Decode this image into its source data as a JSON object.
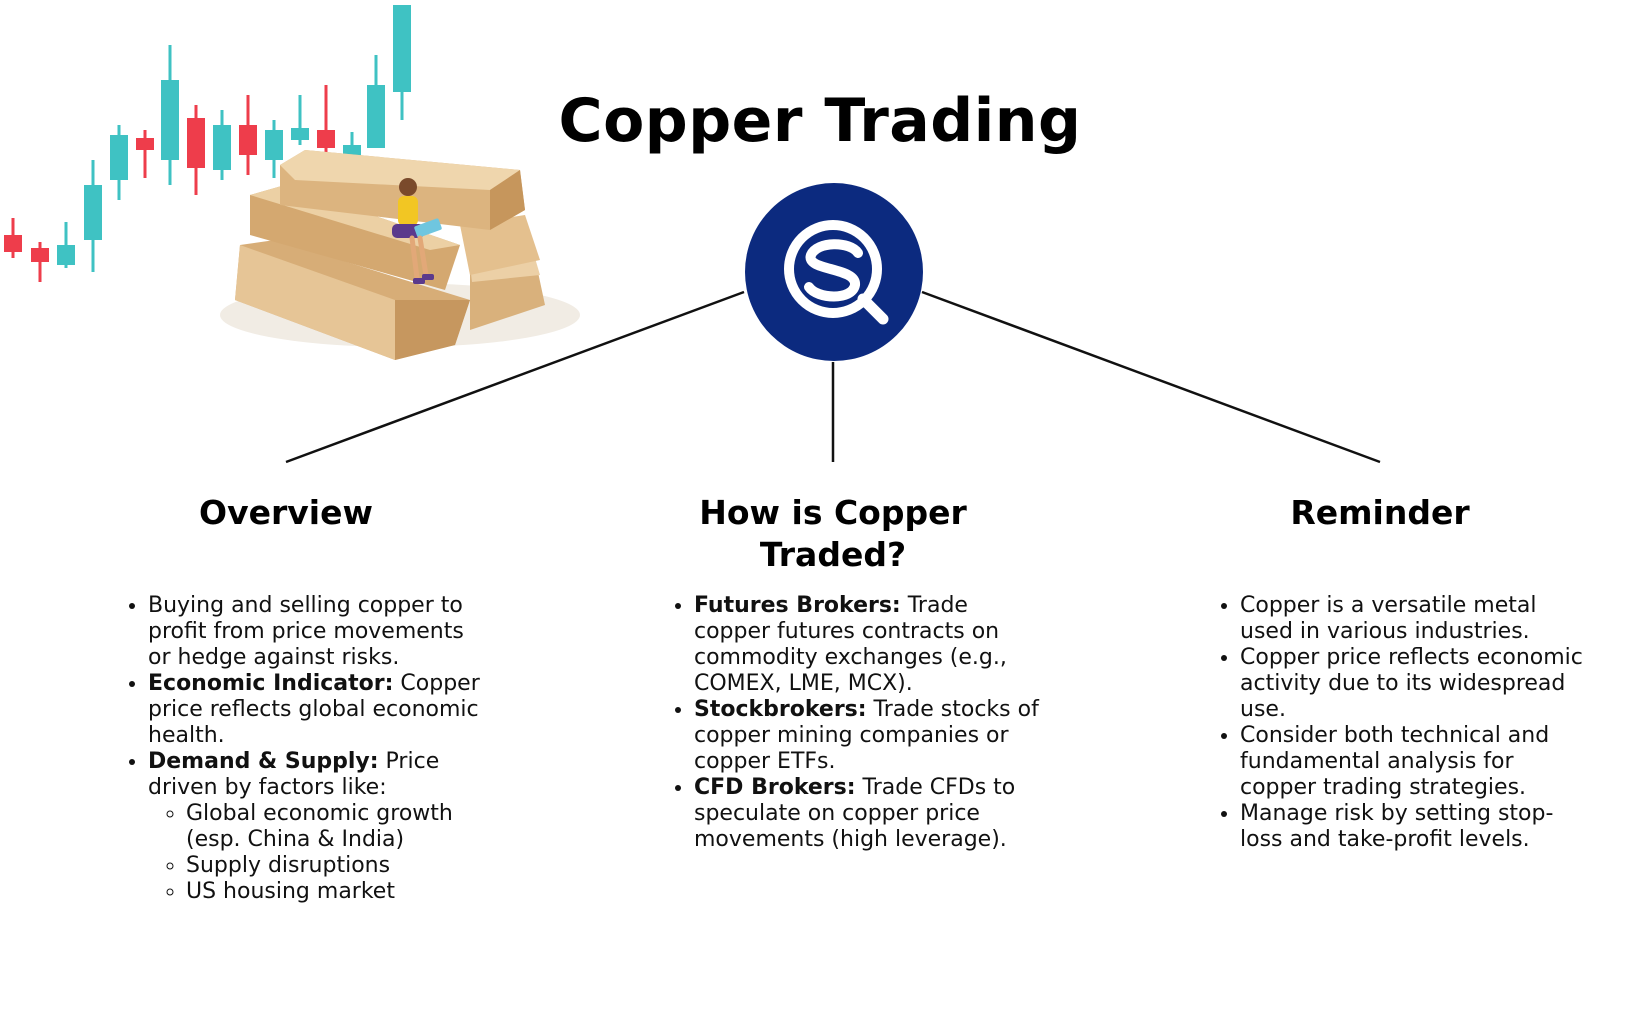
{
  "title": "Copper Trading",
  "colors": {
    "logo_bg": "#0c2a7f",
    "logo_fg": "#ffffff",
    "candle_up": "#3fc2c3",
    "candle_down": "#ee3d4b",
    "gold_light": "#e9c99a",
    "gold_dark": "#c79a63",
    "line": "#111111"
  },
  "logo": {
    "icon": "sq-magnifier-logo-icon"
  },
  "illustration": {
    "icon": "candlestick-gold-bars-illustration-icon"
  },
  "columns": [
    {
      "heading": "Overview",
      "items": [
        {
          "bold": "",
          "text": "Buying and selling copper to profit from price movements or hedge against risks."
        },
        {
          "bold": "Economic Indicator:",
          "text": " Copper price reflects global economic health."
        },
        {
          "bold": "Demand & Supply:",
          "text": " Price driven by factors like:",
          "subitems": [
            "Global economic growth (esp. China & India)",
            "Supply disruptions",
            "US housing market"
          ]
        }
      ]
    },
    {
      "heading": "How is Copper Traded?",
      "items": [
        {
          "bold": "Futures Brokers:",
          "text": " Trade copper futures contracts on commodity exchanges (e.g., COMEX, LME, MCX)."
        },
        {
          "bold": "Stockbrokers:",
          "text": " Trade stocks of copper mining companies or copper ETFs."
        },
        {
          "bold": "CFD Brokers:",
          "text": " Trade CFDs to speculate on copper price movements (high leverage)."
        }
      ]
    },
    {
      "heading": "Reminder",
      "items": [
        {
          "bold": "",
          "text": "Copper is a versatile metal used in various industries."
        },
        {
          "bold": "",
          "text": "Copper price reflects economic activity due to its widespread use."
        },
        {
          "bold": "",
          "text": "Consider both technical and fundamental analysis for copper trading strategies."
        },
        {
          "bold": "",
          "text": "Manage risk by setting stop-loss and take-profit levels."
        }
      ]
    }
  ]
}
